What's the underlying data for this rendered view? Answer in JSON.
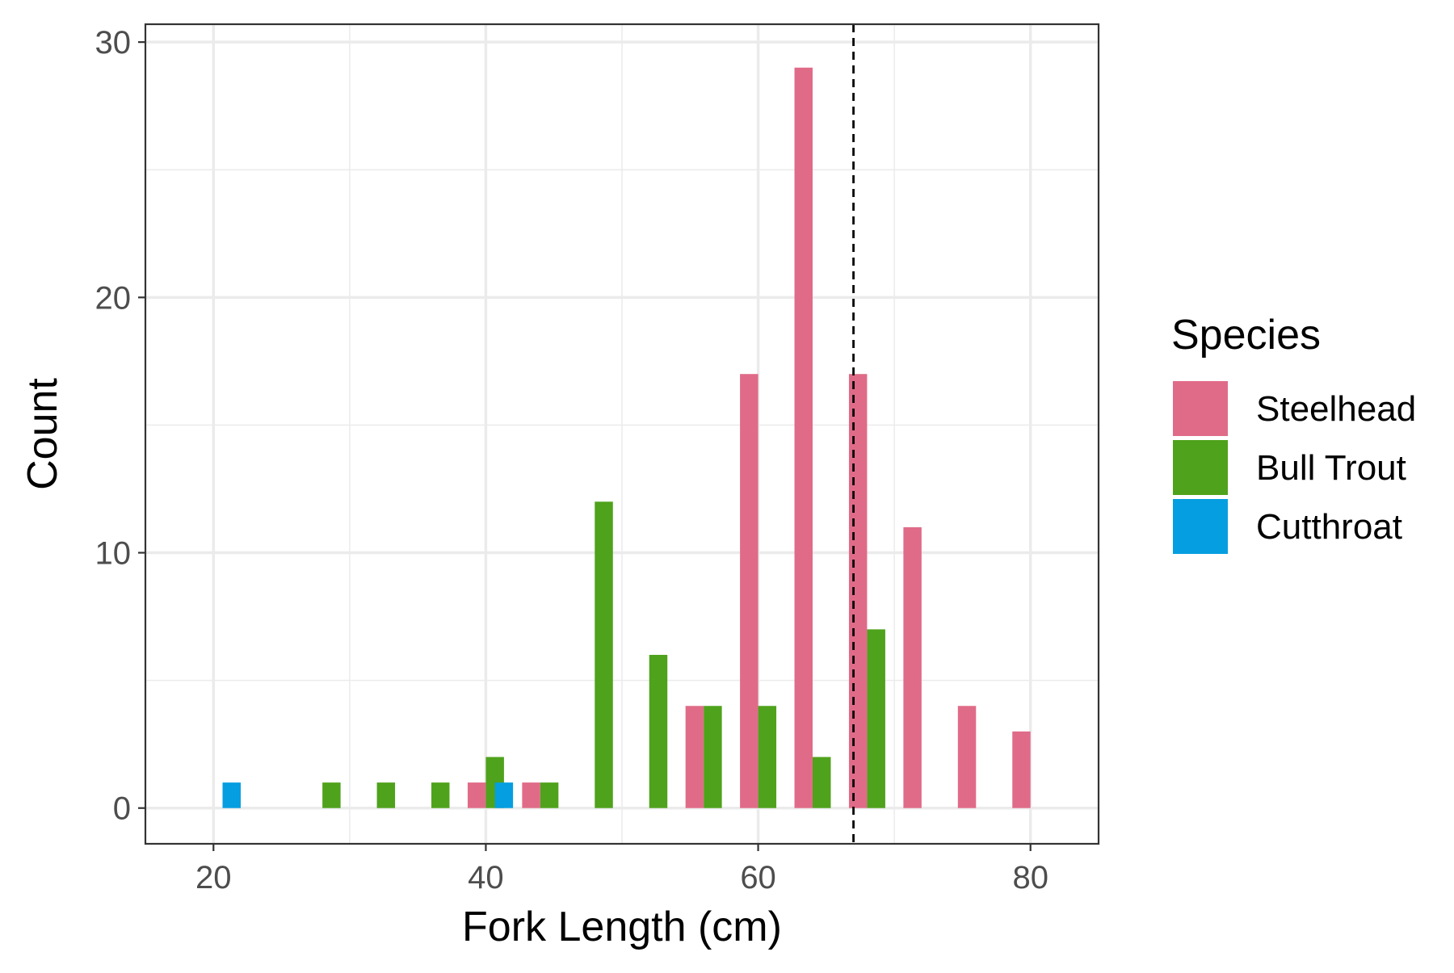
{
  "chart_data": {
    "type": "bar",
    "title": "",
    "xlabel": "Fork Length (cm)",
    "ylabel": "Count",
    "xlim": [
      15,
      85
    ],
    "ylim": [
      -1.4,
      30.7
    ],
    "x_ticks": [
      20,
      40,
      60,
      80
    ],
    "y_ticks": [
      0,
      10,
      20,
      30
    ],
    "x_tick_labels": [
      "20",
      "40",
      "60",
      "80"
    ],
    "y_tick_labels": [
      "0",
      "10",
      "20",
      "30"
    ],
    "bin_width": 4,
    "bar_width": 1.333,
    "grid": true,
    "legend": {
      "title": "Species",
      "position": "right"
    },
    "reference_line": {
      "x": 67,
      "style": "dashed"
    },
    "series": [
      {
        "name": "Steelhead",
        "color": "#e06b88",
        "bars": [
          {
            "x": 39.333,
            "count": 1
          },
          {
            "x": 43.333,
            "count": 1
          },
          {
            "x": 55.333,
            "count": 4
          },
          {
            "x": 59.333,
            "count": 17
          },
          {
            "x": 63.333,
            "count": 29
          },
          {
            "x": 67.333,
            "count": 17
          },
          {
            "x": 71.333,
            "count": 11
          },
          {
            "x": 75.333,
            "count": 4
          },
          {
            "x": 79.333,
            "count": 3
          }
        ]
      },
      {
        "name": "Bull Trout",
        "color": "#4fa21b",
        "bars": [
          {
            "x": 28.667,
            "count": 1
          },
          {
            "x": 32.667,
            "count": 1
          },
          {
            "x": 36.667,
            "count": 1
          },
          {
            "x": 40.667,
            "count": 2
          },
          {
            "x": 44.667,
            "count": 1
          },
          {
            "x": 48.667,
            "count": 12
          },
          {
            "x": 52.667,
            "count": 6
          },
          {
            "x": 56.667,
            "count": 4
          },
          {
            "x": 60.667,
            "count": 4
          },
          {
            "x": 64.667,
            "count": 2
          },
          {
            "x": 68.667,
            "count": 7
          }
        ]
      },
      {
        "name": "Cutthroat",
        "color": "#059ee0",
        "bars": [
          {
            "x": 21.333,
            "count": 1
          },
          {
            "x": 41.333,
            "count": 1
          }
        ]
      }
    ]
  }
}
